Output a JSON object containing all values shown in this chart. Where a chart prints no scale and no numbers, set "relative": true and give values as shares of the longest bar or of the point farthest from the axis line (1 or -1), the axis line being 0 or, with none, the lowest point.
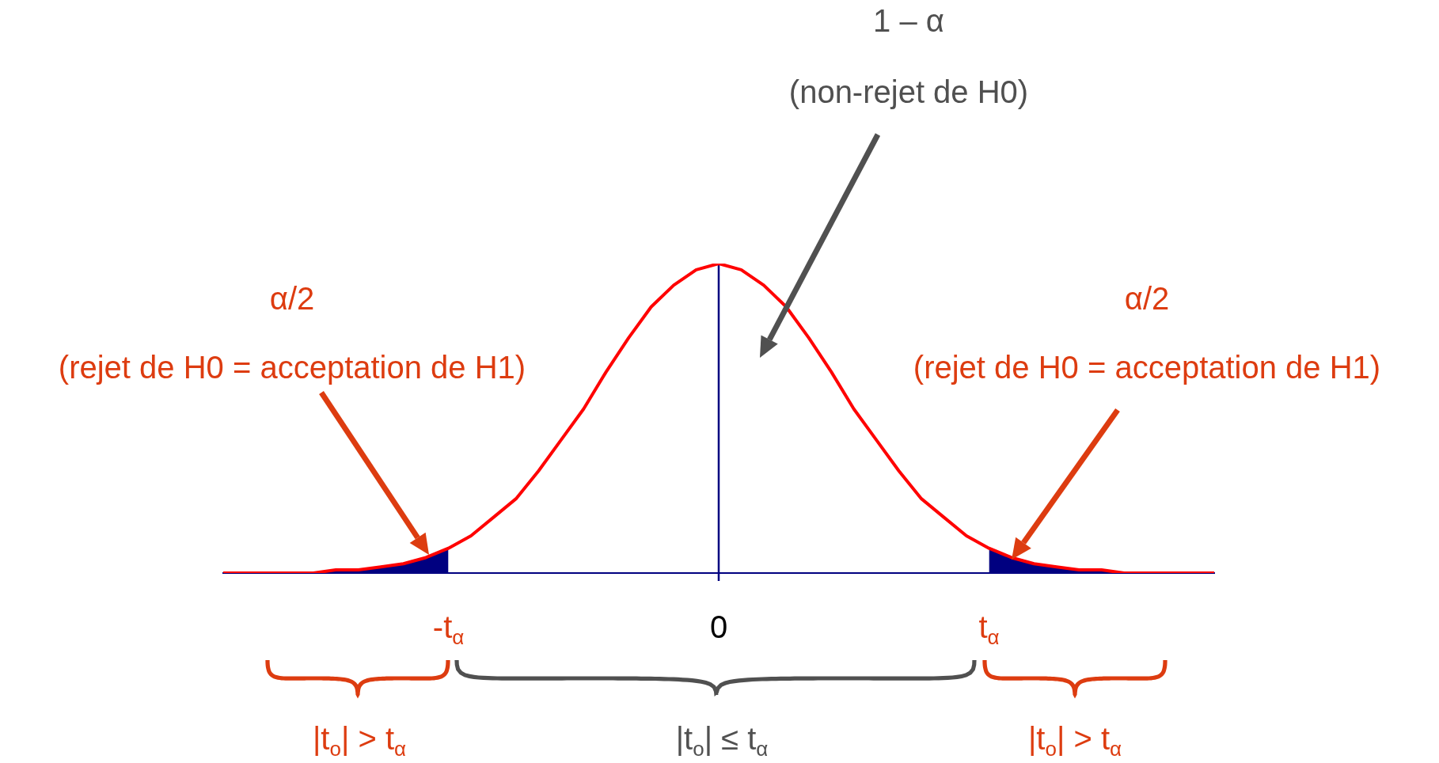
{
  "chart_data": {
    "type": "line",
    "relative": true,
    "grid": false,
    "legend": false,
    "marker": "none",
    "line_style": "solid",
    "categories": [
      null,
      null,
      null,
      null,
      null,
      null,
      null,
      null,
      null,
      null,
      "-t$_{α}$",
      null,
      null,
      null,
      null,
      null,
      null,
      null,
      null,
      null,
      null,
      null,
      "0",
      null,
      null,
      null,
      null,
      null,
      null,
      null,
      null,
      null,
      null,
      null,
      "t$_{α}$",
      null,
      null,
      null,
      null,
      null,
      null,
      null,
      null,
      null,
      null
    ],
    "series": [
      {
        "type": "line",
        "color": "#ff0000",
        "values": [
          0,
          0,
          0,
          0,
          0,
          0.01,
          0.01,
          0.02,
          0.03,
          0.05,
          0.08,
          0.12,
          0.18,
          0.24,
          0.33,
          0.43,
          0.53,
          0.65,
          0.76,
          0.86,
          0.93,
          0.98,
          1,
          0.98,
          0.93,
          0.86,
          0.76,
          0.65,
          0.53,
          0.43,
          0.33,
          0.24,
          0.18,
          0.12,
          0.08,
          0.05,
          0.03,
          0.02,
          0.01,
          0.01,
          0,
          0,
          0,
          0,
          0
        ]
      },
      {
        "type": "area",
        "color": "#000080",
        "values": [
          0,
          0,
          0,
          0,
          0,
          0.01,
          0.01,
          0.02,
          0.03,
          0.05,
          0.08,
          null,
          null,
          null,
          null,
          null,
          null,
          null,
          null,
          null,
          null,
          null,
          null,
          null,
          null,
          null,
          null,
          null,
          null,
          null,
          null,
          null,
          null,
          null,
          0.08,
          0.05,
          0.03,
          0.02,
          0.01,
          0.01,
          0,
          0,
          0,
          0,
          0
        ]
      }
    ],
    "ref_lines": [
      {
        "axis": "x",
        "value": "0",
        "color": "#000080"
      }
    ],
    "annotations": [
      "1 – α",
      "(non-rejet de H0)",
      "α/2",
      "(rejet de H0 = acceptation de H1)",
      "α/2",
      "(rejet de H0 = acceptation de H1)",
      "|t$_{o}$| > t$_{α}$",
      "|t$_{o}$| ≤ t$_{α}$",
      "|t$_{o}$| > t$_{α}$"
    ]
  }
}
